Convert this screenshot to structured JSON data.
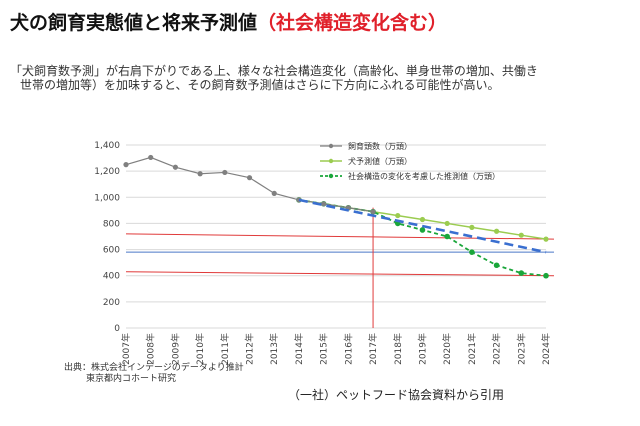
{
  "header": {
    "title_main": "犬の飼育実態値と将来予測値",
    "title_sub": "（社会構造変化含む）"
  },
  "description": {
    "line1": "「犬飼育数予測」が右肩下がりである上、様々な社会構造変化（高齢化、単身世帯の増加、共働き",
    "line2": "世帯の増加等）を加味すると、その飼育数予測値はさらに下方向にふれる可能性が高い。"
  },
  "source": {
    "line1": "出典：株式会社インテージのデータより推計",
    "line2": "東京都内コホート研究"
  },
  "citation": "（一社）ペットフード協会資料から引用",
  "colors": {
    "actual": "#808080",
    "forecast": "#9bcc50",
    "social": "#1aa63a",
    "trend_blue": "#3a6fd0",
    "ref_red": "#e03a3a",
    "ref_blue": "#4a78c8",
    "title_red": "#e0202a"
  },
  "chart_data": {
    "type": "line",
    "categories": [
      "2007年",
      "2008年",
      "2009年",
      "2010年",
      "2011年",
      "2012年",
      "2013年",
      "2014年",
      "2015年",
      "2016年",
      "2017年",
      "2018年",
      "2019年",
      "2020年",
      "2021年",
      "2022年",
      "2023年",
      "2024年"
    ],
    "ylim": [
      0,
      1400
    ],
    "yticks": [
      0,
      200,
      400,
      600,
      800,
      1000,
      1200,
      1400
    ],
    "ytick_labels": [
      "0",
      "200",
      "400",
      "600",
      "800",
      "1,000",
      "1,200",
      "1,400"
    ],
    "grid": "horizontal",
    "legend_position": "top-right",
    "series": [
      {
        "name": "飼育頭数（万頭）",
        "style": "actual",
        "values": [
          1250,
          1305,
          1230,
          1180,
          1190,
          1150,
          1030,
          980,
          950,
          920,
          890,
          null,
          null,
          null,
          null,
          null,
          null,
          null
        ]
      },
      {
        "name": "犬予測値（万頭）",
        "style": "forecast",
        "values": [
          null,
          null,
          null,
          null,
          null,
          null,
          null,
          980,
          950,
          920,
          890,
          860,
          830,
          800,
          770,
          740,
          710,
          680
        ]
      },
      {
        "name": "社会構造の変化を考慮した推測値（万頭）",
        "style": "social",
        "values": [
          null,
          null,
          null,
          null,
          null,
          null,
          null,
          980,
          950,
          920,
          890,
          800,
          750,
          700,
          580,
          480,
          420,
          400
        ]
      }
    ],
    "trend_line": {
      "from": [
        "2014年",
        980
      ],
      "to": [
        "2024年",
        580
      ]
    },
    "reference_lines": [
      {
        "from": 720,
        "to": 680
      },
      {
        "from": 580,
        "to": 580
      },
      {
        "from": 430,
        "to": 400
      }
    ],
    "vertical_marker": "2017年"
  }
}
